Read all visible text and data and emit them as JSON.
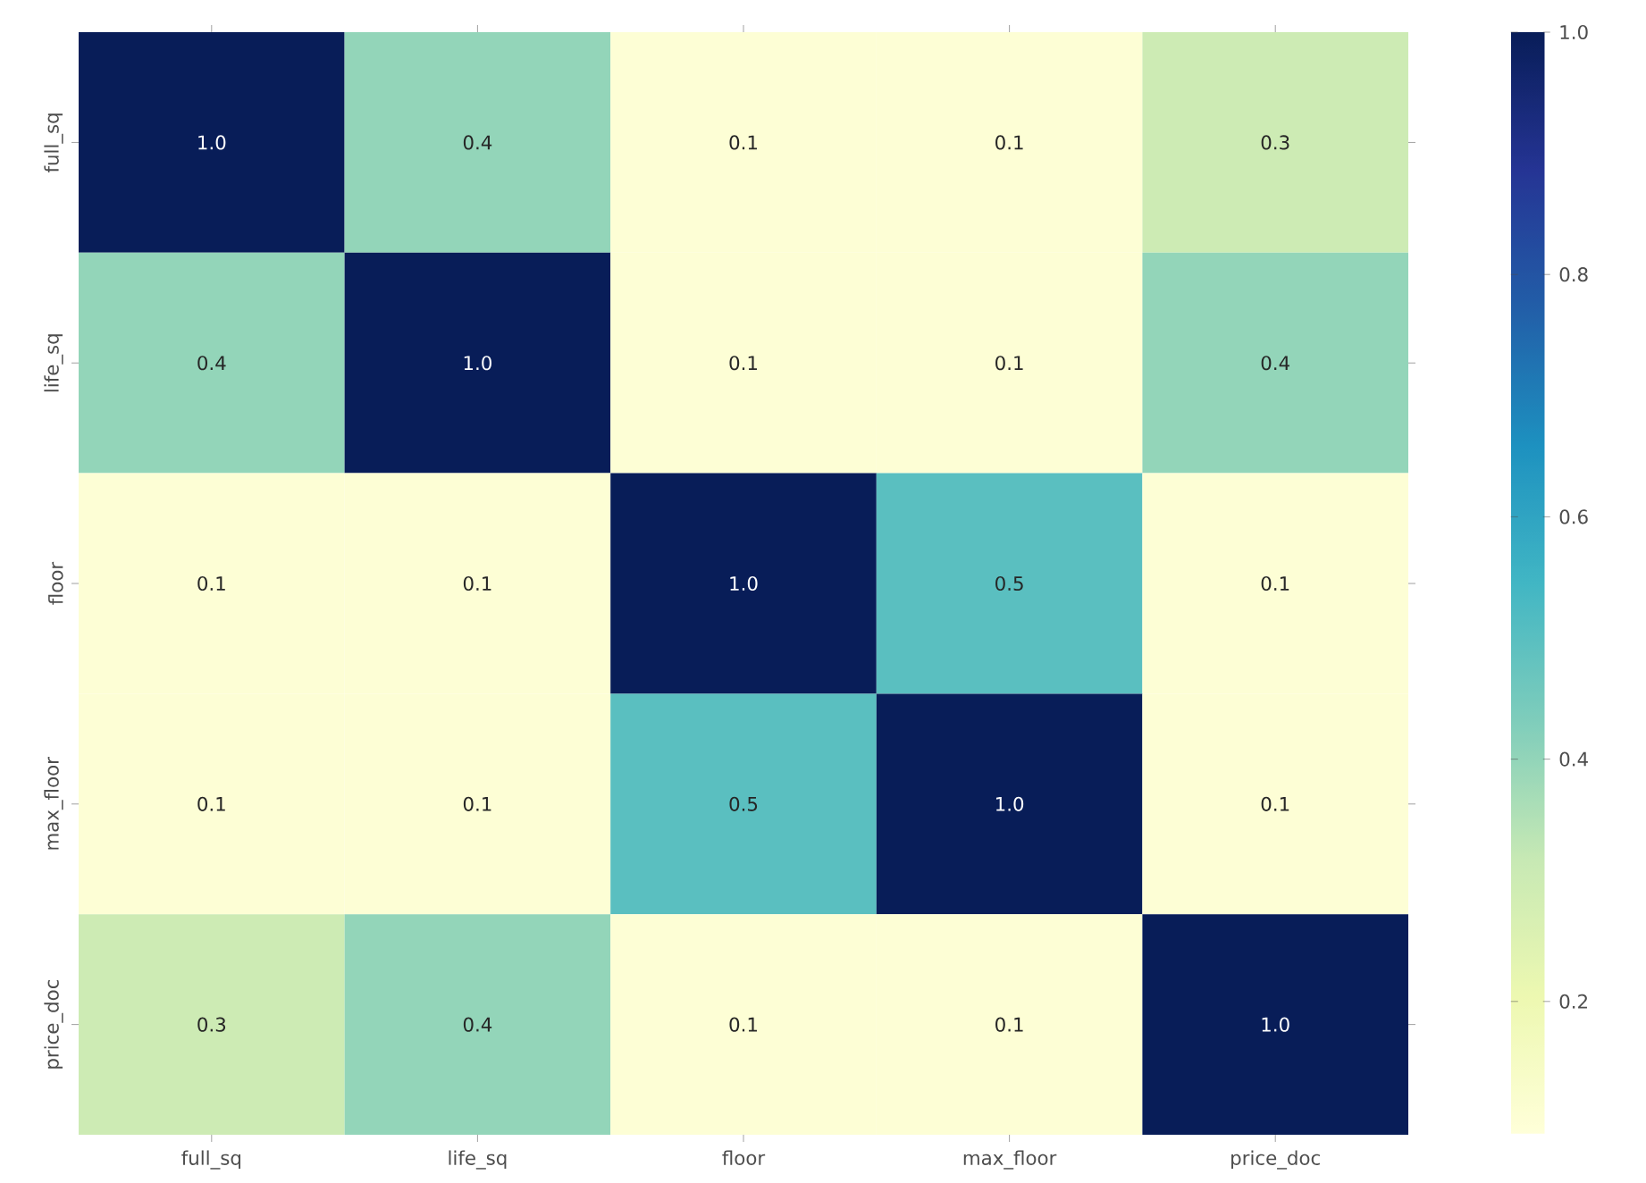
{
  "chart_data": {
    "type": "heatmap",
    "categories": [
      "full_sq",
      "life_sq",
      "floor",
      "max_floor",
      "price_doc"
    ],
    "y_categories": [
      "full_sq",
      "life_sq",
      "floor",
      "max_floor",
      "price_doc"
    ],
    "cells": [
      [
        1.0,
        0.4,
        0.1,
        0.1,
        0.3
      ],
      [
        0.4,
        1.0,
        0.1,
        0.1,
        0.4
      ],
      [
        0.1,
        0.1,
        1.0,
        0.5,
        0.1
      ],
      [
        0.1,
        0.1,
        0.5,
        1.0,
        0.1
      ],
      [
        0.3,
        0.4,
        0.1,
        0.1,
        1.0
      ]
    ],
    "cell_labels": [
      [
        "1.0",
        "0.4",
        "0.1",
        "0.1",
        "0.3"
      ],
      [
        "0.4",
        "1.0",
        "0.1",
        "0.1",
        "0.4"
      ],
      [
        "0.1",
        "0.1",
        "1.0",
        "0.5",
        "0.1"
      ],
      [
        "0.1",
        "0.1",
        "0.5",
        "1.0",
        "0.1"
      ],
      [
        "0.3",
        "0.4",
        "0.1",
        "0.1",
        "1.0"
      ]
    ],
    "data_labels": true,
    "clim": [
      0.09,
      1.0
    ],
    "cticks": [
      0.2,
      0.4,
      0.6,
      0.8,
      {
        "value": 1,
        "label": "1.0"
      }
    ]
  }
}
